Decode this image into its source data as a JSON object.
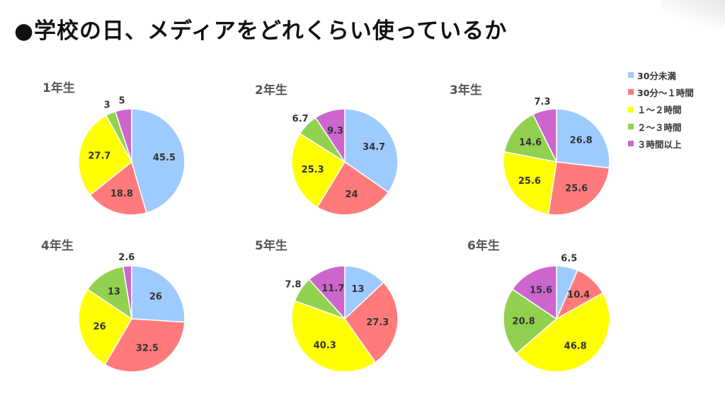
{
  "title": "●学校の日、メディアをどれくらい使っているか",
  "colors": {
    "text_grade": "#555555",
    "text_value": "#333333"
  },
  "chart_data": {
    "type": "pie",
    "legend_position": "top-right",
    "legend": [
      {
        "name": "30分未満",
        "color": "#9ecbff"
      },
      {
        "name": "30分～１時間",
        "color": "#ff7b7b"
      },
      {
        "name": "１～２時間",
        "color": "#ffff00"
      },
      {
        "name": "２～３時間",
        "color": "#92d050"
      },
      {
        "name": "３時間以上",
        "color": "#cc66cc"
      }
    ],
    "pies": [
      {
        "label": "1年生",
        "values": [
          45.5,
          18.8,
          27.7,
          3,
          5
        ]
      },
      {
        "label": "2年生",
        "values": [
          34.7,
          24,
          25.3,
          6.7,
          9.3
        ]
      },
      {
        "label": "3年生",
        "values": [
          26.8,
          25.6,
          25.6,
          14.6,
          7.3
        ]
      },
      {
        "label": "4年生",
        "values": [
          26,
          32.5,
          26,
          13,
          2.6
        ]
      },
      {
        "label": "5年生",
        "values": [
          13,
          27.3,
          40.3,
          7.8,
          11.7
        ]
      },
      {
        "label": "6年生",
        "values": [
          6.5,
          10.4,
          46.8,
          20.8,
          15.6
        ]
      }
    ]
  }
}
